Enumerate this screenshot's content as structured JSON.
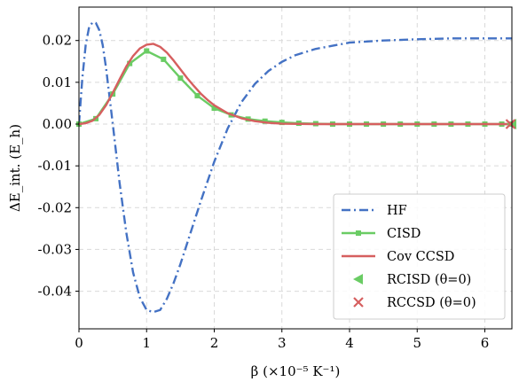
{
  "chart_data": {
    "type": "line",
    "xlabel": "β (×10⁻⁵ K⁻¹)",
    "ylabel": "ΔE_int. (E_h)",
    "xlim": [
      0,
      6.4
    ],
    "ylim": [
      -0.049,
      0.028
    ],
    "grid": true,
    "legend_position": "lower-right",
    "x_ticks": [
      0,
      1,
      2,
      3,
      4,
      5,
      6
    ],
    "x_tick_labels": [
      "0",
      "1",
      "2",
      "3",
      "4",
      "5",
      "6"
    ],
    "y_ticks": [
      0.02,
      0.01,
      0.0,
      -0.01,
      -0.02,
      -0.03,
      -0.04
    ],
    "y_tick_labels": [
      "0.02",
      "0.01",
      "0.00",
      "-0.01",
      "-0.02",
      "-0.03",
      "-0.04"
    ],
    "series": [
      {
        "name": "HF",
        "style": "dashdot",
        "color": "#4472c4",
        "x": [
          0,
          0.05,
          0.1,
          0.15,
          0.2,
          0.25,
          0.3,
          0.35,
          0.4,
          0.5,
          0.6,
          0.7,
          0.8,
          0.9,
          1.0,
          1.1,
          1.2,
          1.3,
          1.4,
          1.5,
          1.6,
          1.8,
          2.0,
          2.2,
          2.4,
          2.6,
          2.8,
          3.0,
          3.2,
          3.5,
          4.0,
          4.5,
          5.0,
          5.5,
          6.0,
          6.4
        ],
        "y": [
          0.0,
          0.011,
          0.019,
          0.0232,
          0.0243,
          0.0242,
          0.0225,
          0.019,
          0.0135,
          0.0,
          -0.014,
          -0.026,
          -0.0355,
          -0.0415,
          -0.0445,
          -0.045,
          -0.0445,
          -0.0418,
          -0.038,
          -0.0335,
          -0.0285,
          -0.0185,
          -0.009,
          -0.001,
          0.0052,
          0.0096,
          0.0127,
          0.0149,
          0.0165,
          0.018,
          0.0195,
          0.02,
          0.0203,
          0.0205,
          0.0205,
          0.0205
        ]
      },
      {
        "name": "CISD",
        "style": "solid-square-markers",
        "color": "#6acc64",
        "x": [
          0,
          0.25,
          0.5,
          0.75,
          1.0,
          1.25,
          1.5,
          1.75,
          2.0,
          2.25,
          2.5,
          2.75,
          3.0,
          3.25,
          3.5,
          3.75,
          4.0,
          4.25,
          4.5,
          4.75,
          5.0,
          5.25,
          5.5,
          5.75,
          6.0,
          6.25,
          6.4
        ],
        "y": [
          0.0,
          0.0013,
          0.0072,
          0.0145,
          0.0175,
          0.0155,
          0.011,
          0.0068,
          0.0038,
          0.0022,
          0.0012,
          0.0007,
          0.0004,
          0.0002,
          0.0001,
          0.0,
          0.0,
          0.0,
          0.0,
          0.0,
          0.0,
          0.0,
          0.0,
          0.0,
          0.0,
          0.0,
          0.0
        ]
      },
      {
        "name": "Cov CCSD",
        "style": "solid",
        "color": "#d65f5f",
        "x": [
          0,
          0.1,
          0.2,
          0.3,
          0.4,
          0.5,
          0.6,
          0.7,
          0.8,
          0.9,
          1.0,
          1.1,
          1.2,
          1.3,
          1.4,
          1.5,
          1.6,
          1.7,
          1.8,
          1.9,
          2.0,
          2.2,
          2.4,
          2.6,
          2.8,
          3.0,
          3.5,
          4.0,
          5.0,
          6.0,
          6.4
        ],
        "y": [
          0.0,
          0.0002,
          0.0008,
          0.0022,
          0.0045,
          0.0075,
          0.0107,
          0.0138,
          0.0163,
          0.0181,
          0.019,
          0.0192,
          0.0185,
          0.0171,
          0.0152,
          0.0131,
          0.011,
          0.0091,
          0.0073,
          0.0058,
          0.0045,
          0.0026,
          0.0014,
          0.0007,
          0.0003,
          0.0001,
          0.0,
          0.0,
          0.0,
          0.0,
          0.0
        ]
      },
      {
        "name": "RCISD (θ=0)",
        "style": "marker-triangle-left",
        "color": "#6acc64",
        "x": [
          6.4
        ],
        "y": [
          0.0
        ]
      },
      {
        "name": "RCCSD (θ=0)",
        "style": "marker-x",
        "color": "#d65f5f",
        "x": [
          6.38
        ],
        "y": [
          0.0
        ]
      }
    ]
  }
}
